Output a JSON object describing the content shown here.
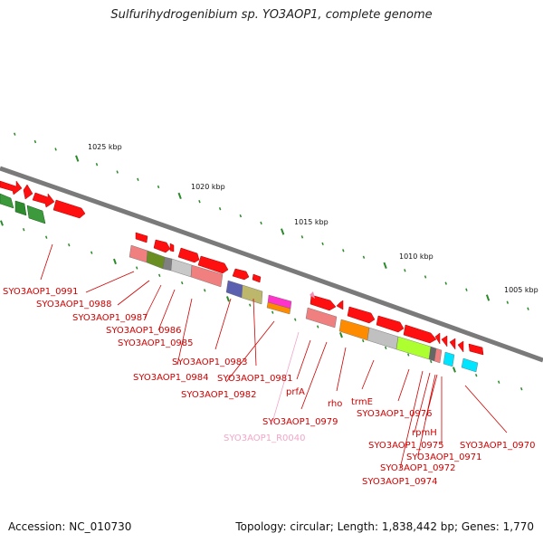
{
  "title": "Sulfurihydrogenibium sp. YO3AOP1, complete genome",
  "footer": {
    "accession": "Accession: NC_010730",
    "summary": "Topology: circular; Length: 1,838,442 bp; Genes: 1,770"
  },
  "colors": {
    "cds": "#ff1010",
    "label": "#d10000",
    "rna_label": "#f2a6c8",
    "backbone": "#7a7a7a",
    "tick": "#2a8a2a"
  },
  "scale": [
    {
      "label": "1025 kbp"
    },
    {
      "label": "1020 kbp"
    },
    {
      "label": "1015 kbp"
    },
    {
      "label": "1010 kbp"
    },
    {
      "label": "1005 kbp"
    }
  ],
  "gene_labels": [
    {
      "text": "SYO3AOP1_0991",
      "kind": "cds"
    },
    {
      "text": "SYO3AOP1_0988",
      "kind": "cds"
    },
    {
      "text": "SYO3AOP1_0987",
      "kind": "cds"
    },
    {
      "text": "SYO3AOP1_0986",
      "kind": "cds"
    },
    {
      "text": "SYO3AOP1_0985",
      "kind": "cds"
    },
    {
      "text": "SYO3AOP1_0983",
      "kind": "cds"
    },
    {
      "text": "SYO3AOP1_0984",
      "kind": "cds"
    },
    {
      "text": "SYO3AOP1_0981",
      "kind": "cds"
    },
    {
      "text": "SYO3AOP1_0982",
      "kind": "cds"
    },
    {
      "text": "prfA",
      "kind": "cds"
    },
    {
      "text": "rho",
      "kind": "cds"
    },
    {
      "text": "trmE",
      "kind": "cds"
    },
    {
      "text": "SYO3AOP1_0979",
      "kind": "cds"
    },
    {
      "text": "SYO3AOP1_R0040",
      "kind": "rna"
    },
    {
      "text": "SYO3AOP1_0976",
      "kind": "cds"
    },
    {
      "text": "rpmH",
      "kind": "cds"
    },
    {
      "text": "SYO3AOP1_0975",
      "kind": "cds"
    },
    {
      "text": "SYO3AOP1_0971",
      "kind": "cds"
    },
    {
      "text": "SYO3AOP1_0970",
      "kind": "cds"
    },
    {
      "text": "SYO3AOP1_0972",
      "kind": "cds"
    },
    {
      "text": "SYO3AOP1_0974",
      "kind": "cds"
    }
  ]
}
